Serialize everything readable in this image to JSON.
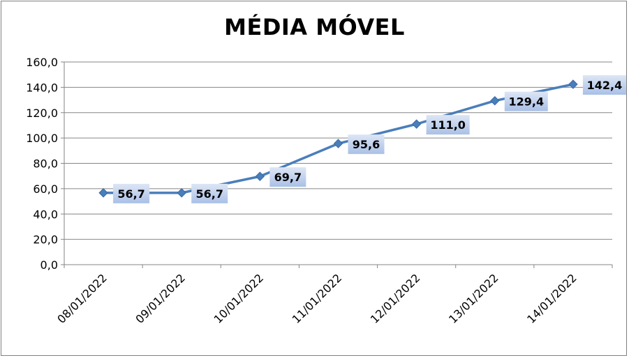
{
  "chart_data": {
    "type": "line",
    "title": "MÉDIA MÓVEL",
    "categories": [
      "08/01/2022",
      "09/01/2022",
      "10/01/2022",
      "11/01/2022",
      "12/01/2022",
      "13/01/2022",
      "14/01/2022"
    ],
    "values": [
      56.7,
      56.7,
      69.7,
      95.6,
      111.0,
      129.4,
      142.4
    ],
    "value_labels": [
      "56,7",
      "56,7",
      "69,7",
      "95,6",
      "111,0",
      "129,4",
      "142,4"
    ],
    "y_ticks": [
      "0,0",
      "20,0",
      "40,0",
      "60,0",
      "80,0",
      "100,0",
      "120,0",
      "140,0",
      "160,0"
    ],
    "ylim": [
      0,
      160
    ],
    "grid": true,
    "legend": false,
    "line_color": "#4a7ebb",
    "label_box_color": "#c6d4ec"
  }
}
